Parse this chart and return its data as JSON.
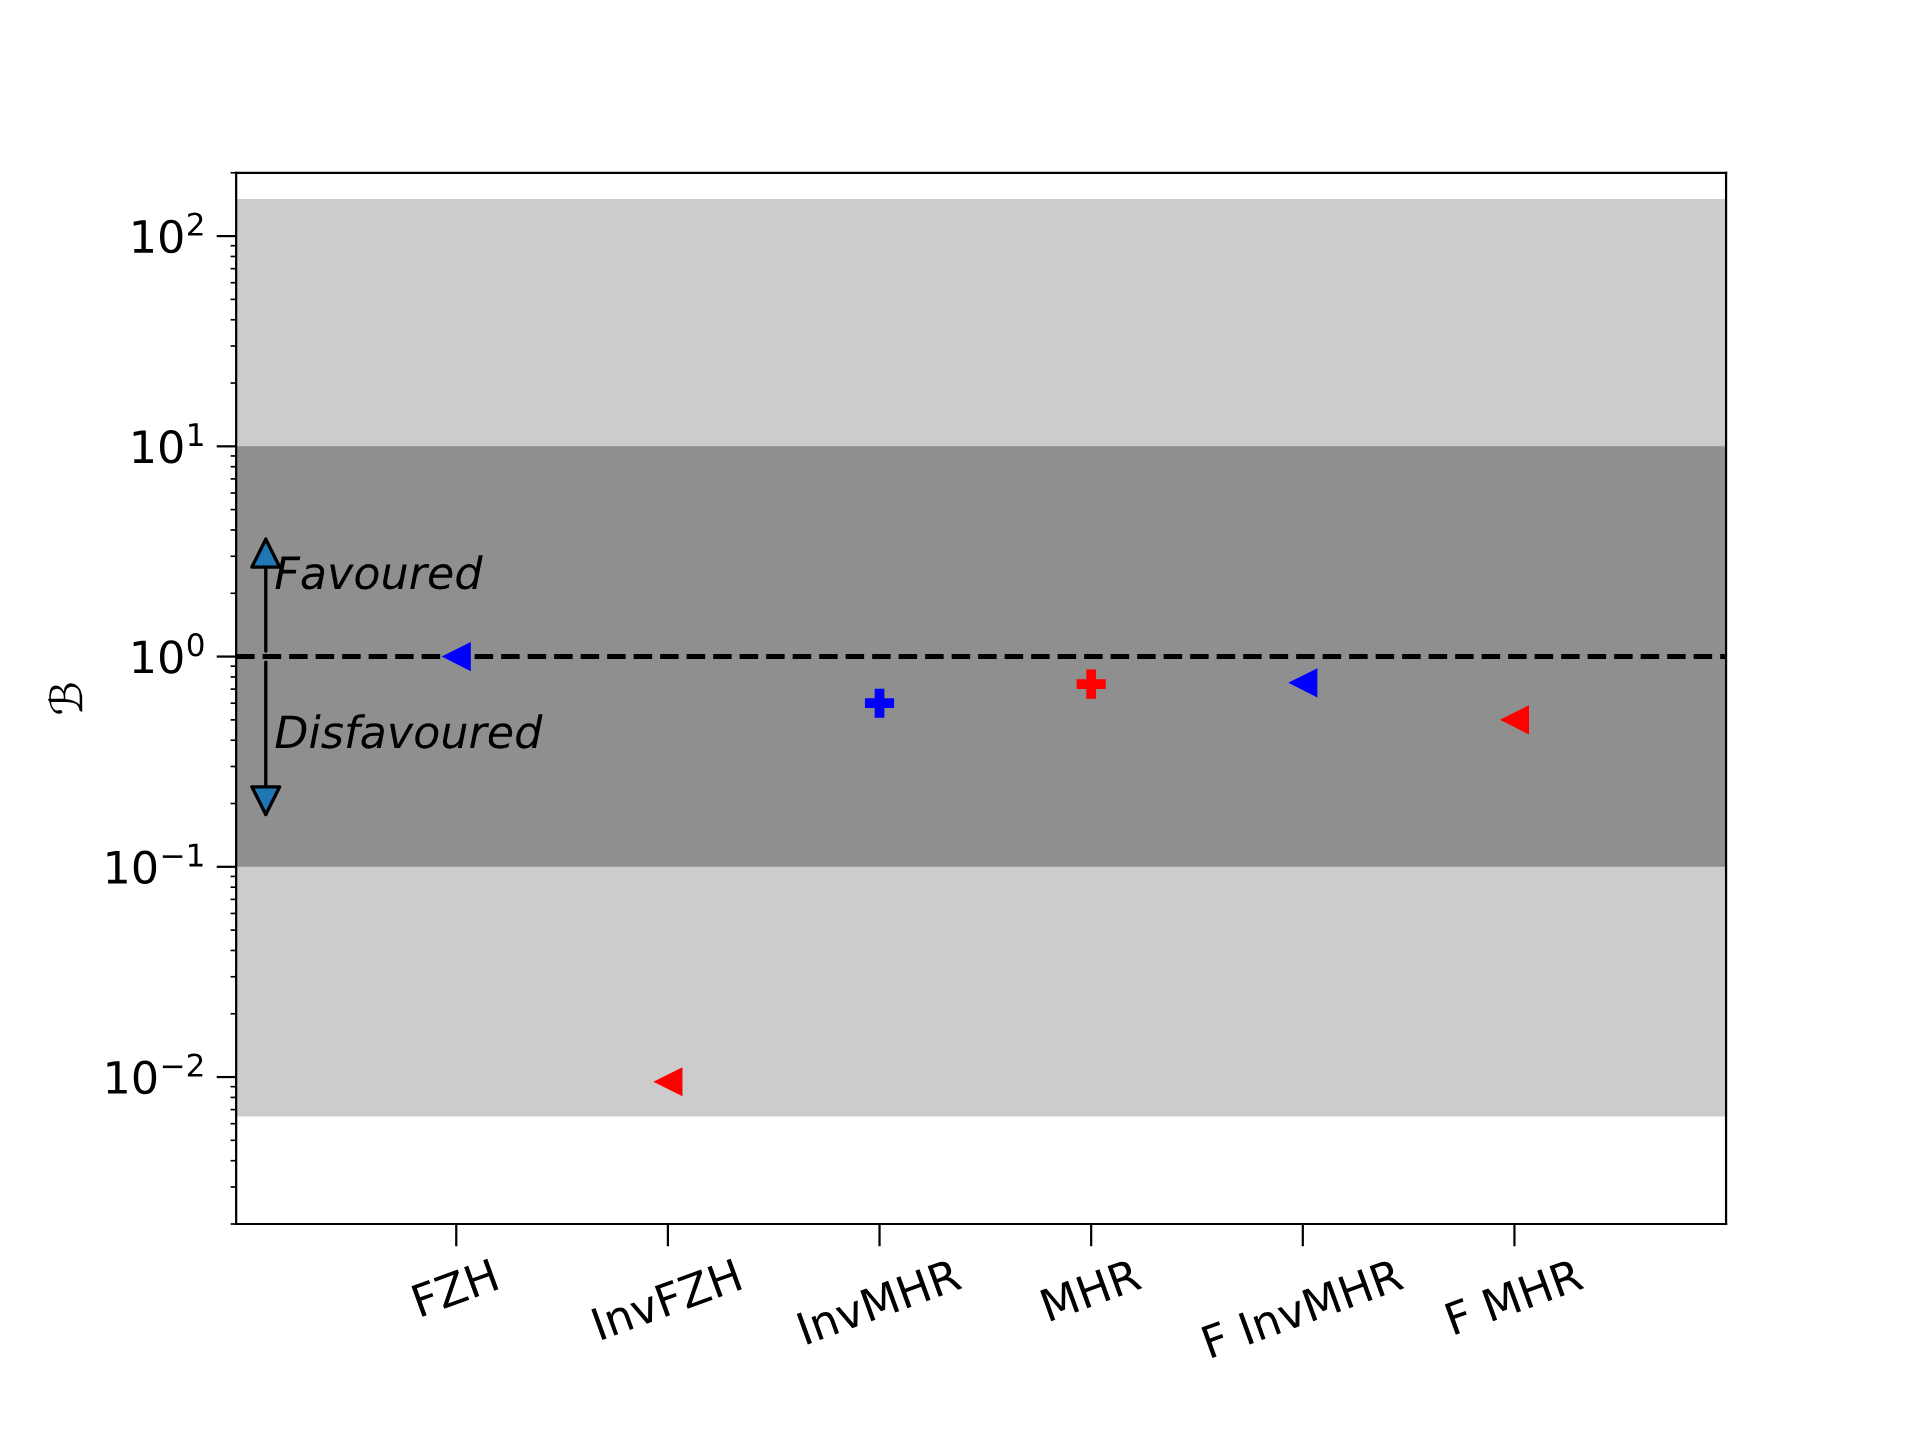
{
  "chart_data": {
    "type": "scatter",
    "ylabel": "ℬ",
    "categories": [
      "FZH",
      "InvFZH",
      "InvMHR",
      "MHR",
      "F InvMHR",
      "F MHR"
    ],
    "series": [
      {
        "color": "#0000ff",
        "marker": "triangle",
        "values": [
          1.0,
          null,
          null,
          null,
          0.75,
          null
        ]
      },
      {
        "color": "#ff0000",
        "marker": "triangle",
        "values": [
          null,
          0.0095,
          null,
          null,
          null,
          0.5
        ]
      },
      {
        "color": "#0000ff",
        "marker": "cross",
        "values": [
          null,
          null,
          0.6,
          null,
          null,
          null
        ]
      },
      {
        "color": "#ff0000",
        "marker": "cross",
        "values": [
          null,
          null,
          null,
          0.74,
          null,
          null
        ]
      }
    ],
    "log": "y",
    "ylim": [
      0.002,
      200
    ],
    "yticks": [
      {
        "value": 0.01,
        "label": "10$^{−2}$"
      },
      {
        "value": 0.1,
        "label": "10$^{−1}$"
      },
      {
        "value": 1,
        "label": "10$^{0}$"
      },
      {
        "value": 10,
        "label": "10$^{1}$"
      },
      {
        "value": 100,
        "label": "10$^{2}$"
      }
    ],
    "bands": [
      {
        "axis": "y",
        "from": 0.0065,
        "to": 150,
        "color": "#cccccc"
      },
      {
        "axis": "y",
        "from": 0.1,
        "to": 10,
        "color": "#8f8f8f"
      }
    ],
    "ref_lines": [
      {
        "axis": "y",
        "value": 1,
        "color": "#000000",
        "line_style": "dashed"
      }
    ],
    "annotations": [
      "Favoured",
      "Disfavoured"
    ],
    "grid": false,
    "legend": false
  }
}
